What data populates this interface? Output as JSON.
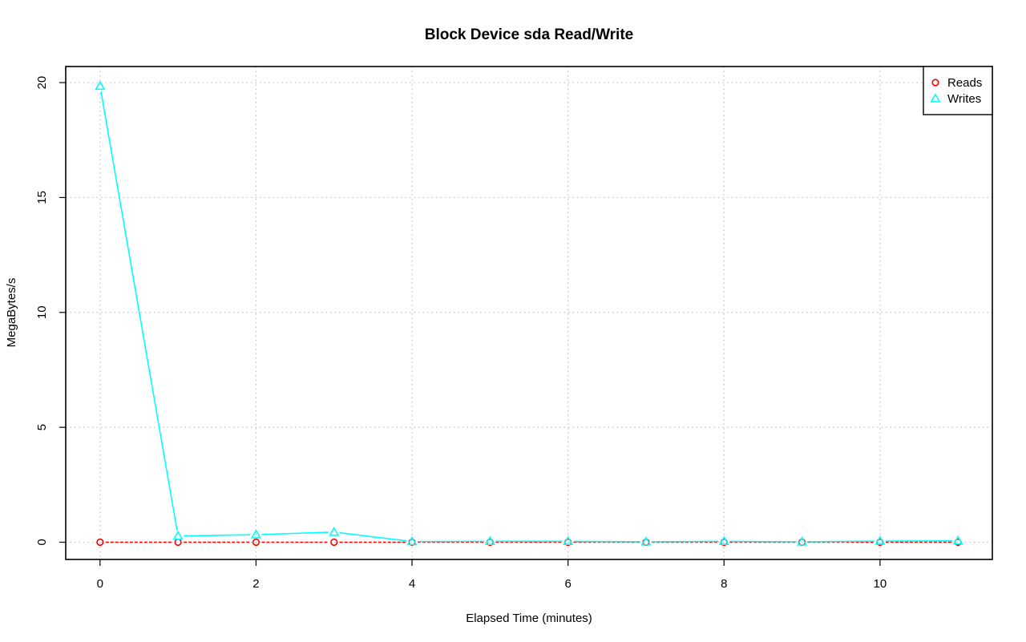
{
  "chart_data": {
    "type": "line",
    "title": "Block Device sda Read/Write",
    "xlabel": "Elapsed Time (minutes)",
    "ylabel": "MegaBytes/s",
    "xlim": [
      -0.44,
      11.44
    ],
    "ylim": [
      -0.75,
      20.7
    ],
    "x_ticks": [
      0,
      2,
      4,
      6,
      8,
      10
    ],
    "y_ticks": [
      0,
      5,
      10,
      15,
      20
    ],
    "grid": true,
    "legend_position": "top-right",
    "x": [
      0,
      1,
      2,
      3,
      4,
      5,
      6,
      7,
      8,
      9,
      10,
      11
    ],
    "series": [
      {
        "name": "Reads",
        "color": "#ff0000",
        "marker": "circle",
        "line_style": "dashed",
        "values": [
          0,
          0,
          0,
          0,
          0,
          0,
          0,
          0,
          0,
          0,
          0,
          0
        ]
      },
      {
        "name": "Writes",
        "color": "#00ffff",
        "marker": "triangle",
        "line_style": "solid",
        "values": [
          19.85,
          0.27,
          0.33,
          0.44,
          0.03,
          0.04,
          0.04,
          0.02,
          0.04,
          0.02,
          0.05,
          0.06
        ]
      }
    ]
  }
}
